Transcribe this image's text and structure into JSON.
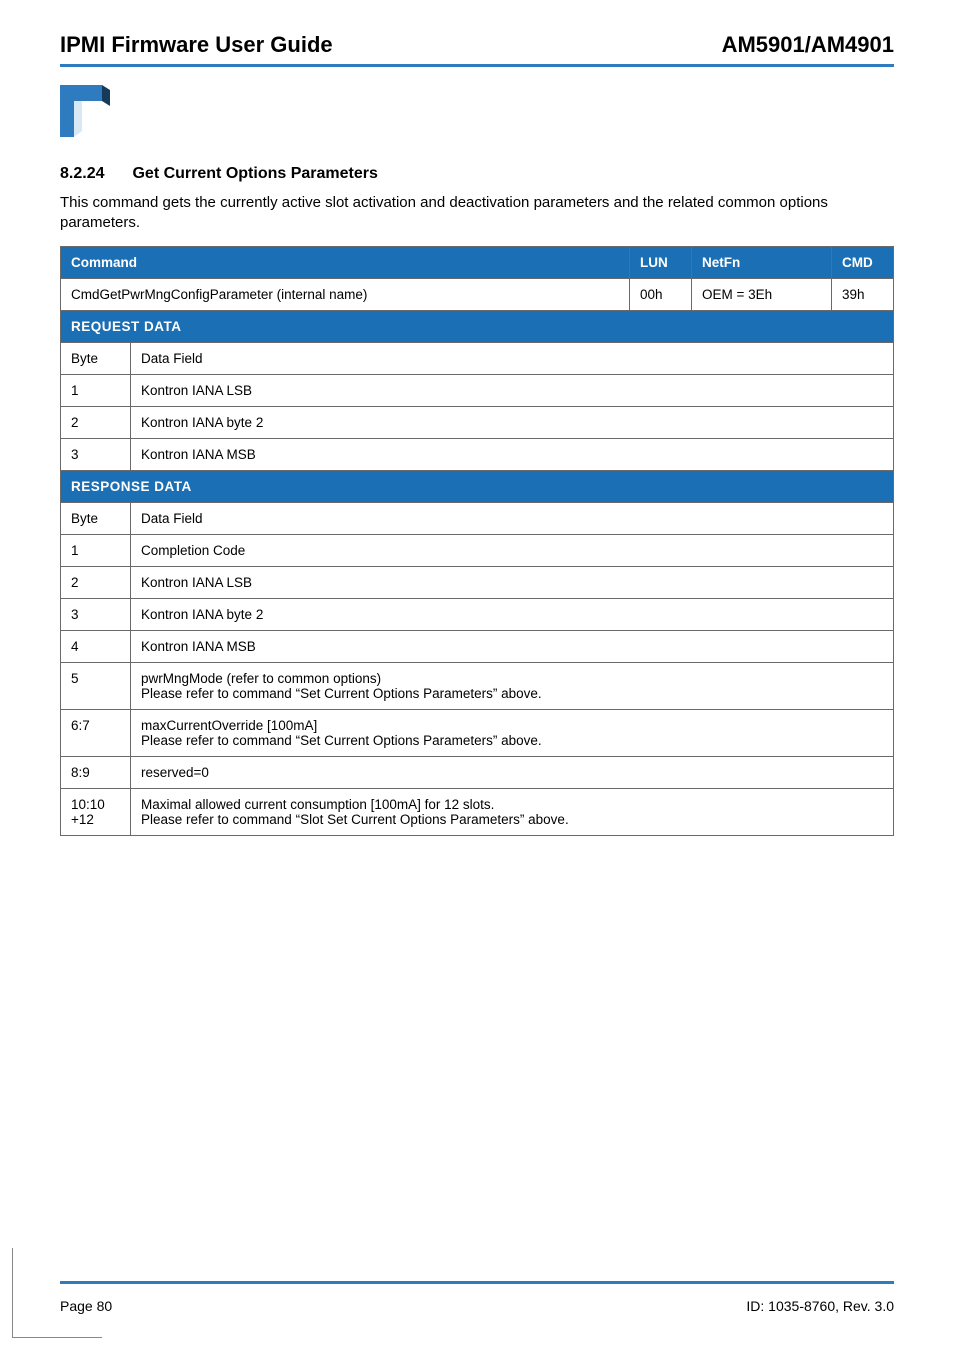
{
  "header": {
    "doc_title": "IPMI Firmware User Guide",
    "doc_model": "AM5901/AM4901"
  },
  "colors": {
    "rule": "#2f7bbf",
    "table_header_bg": "#1b6fb5",
    "table_header_fg": "#ffffff",
    "table_border": "#6a6a6a",
    "logo_blue": "#2f7bbf",
    "logo_shadow": "#153a5a"
  },
  "section": {
    "number": "8.2.24",
    "title": "Get Current Options Parameters",
    "body": "This command gets the currently active slot activation and deactivation parameters and the related common options parameters."
  },
  "table": {
    "head": {
      "command_label": "Command",
      "lun_label": "LUN",
      "netfn_label": "NetFn",
      "cmd_label": "CMD"
    },
    "command_row": {
      "name": "CmdGetPwrMngConfigParameter (internal name)",
      "lun": "00h",
      "netfn": "OEM = 3Eh",
      "cmd": "39h"
    },
    "request_band": "REQUEST DATA",
    "request_rows": [
      {
        "b": "Byte",
        "d": "Data Field"
      },
      {
        "b": "1",
        "d": "Kontron IANA LSB"
      },
      {
        "b": "2",
        "d": "Kontron IANA byte 2"
      },
      {
        "b": "3",
        "d": "Kontron IANA MSB"
      }
    ],
    "response_band": "RESPONSE DATA",
    "response_rows": [
      {
        "b": "Byte",
        "d": "Data Field"
      },
      {
        "b": "1",
        "d": "Completion Code"
      },
      {
        "b": "2",
        "d": "Kontron IANA LSB"
      },
      {
        "b": "3",
        "d": "Kontron IANA byte 2"
      },
      {
        "b": "4",
        "d": "Kontron IANA MSB"
      },
      {
        "b": "5",
        "d": "pwrMngMode (refer to common options)\nPlease refer to command “Set Current Options Parameters” above."
      },
      {
        "b": "6:7",
        "d": "maxCurrentOverride [100mA]\nPlease refer to command “Set Current Options Parameters” above."
      },
      {
        "b": "8:9",
        "d": "reserved=0"
      },
      {
        "b": "10:10\n+12",
        "d": "Maximal allowed current consumption [100mA] for 12 slots.\nPlease refer to command “Slot Set Current Options Parameters” above."
      }
    ],
    "col_widths": {
      "byte": "70px",
      "lun": "62px",
      "netfn": "140px",
      "cmd": "62px"
    }
  },
  "footer": {
    "page": "Page 80",
    "id": "ID: 1035-8760, Rev. 3.0"
  }
}
